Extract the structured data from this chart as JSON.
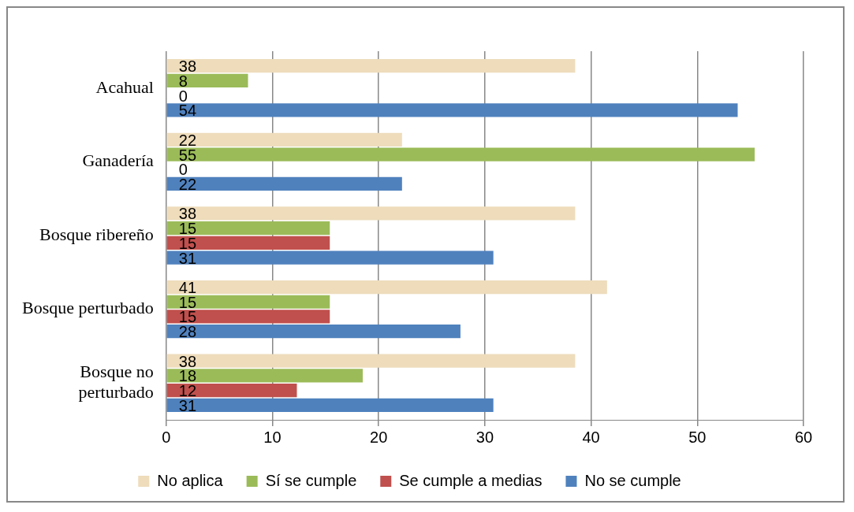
{
  "chart_data": {
    "type": "bar",
    "orientation": "horizontal",
    "categories": [
      "Acahual",
      "Ganadería",
      "Bosque ribereño",
      "Bosque perturbado",
      "Bosque no perturbado"
    ],
    "series": [
      {
        "name": "No aplica",
        "color": "#eedcbb",
        "values": [
          38.5,
          22.2,
          38.5,
          41.5,
          38.5
        ],
        "value_labels": [
          "38",
          "22",
          "38",
          "41",
          "38"
        ]
      },
      {
        "name": "Sí se cumple",
        "color": "#9bbb59",
        "values": [
          7.7,
          55.4,
          15.4,
          15.4,
          18.5
        ],
        "value_labels": [
          "8",
          "55",
          "15",
          "15",
          "18"
        ]
      },
      {
        "name": "Se cumple a medias",
        "color": "#c0504d",
        "values": [
          0,
          0,
          15.4,
          15.4,
          12.3
        ],
        "value_labels": [
          "0",
          "0",
          "15",
          "15",
          "12"
        ]
      },
      {
        "name": "No se cumple",
        "color": "#4f81bd",
        "values": [
          53.8,
          22.2,
          30.8,
          27.7,
          30.8
        ],
        "value_labels": [
          "54",
          "22",
          "31",
          "28",
          "31"
        ]
      }
    ],
    "xlim": [
      0,
      60
    ],
    "xticks": [
      0,
      10,
      20,
      30,
      40,
      50,
      60
    ],
    "grid": "x",
    "legend": "bottom"
  }
}
